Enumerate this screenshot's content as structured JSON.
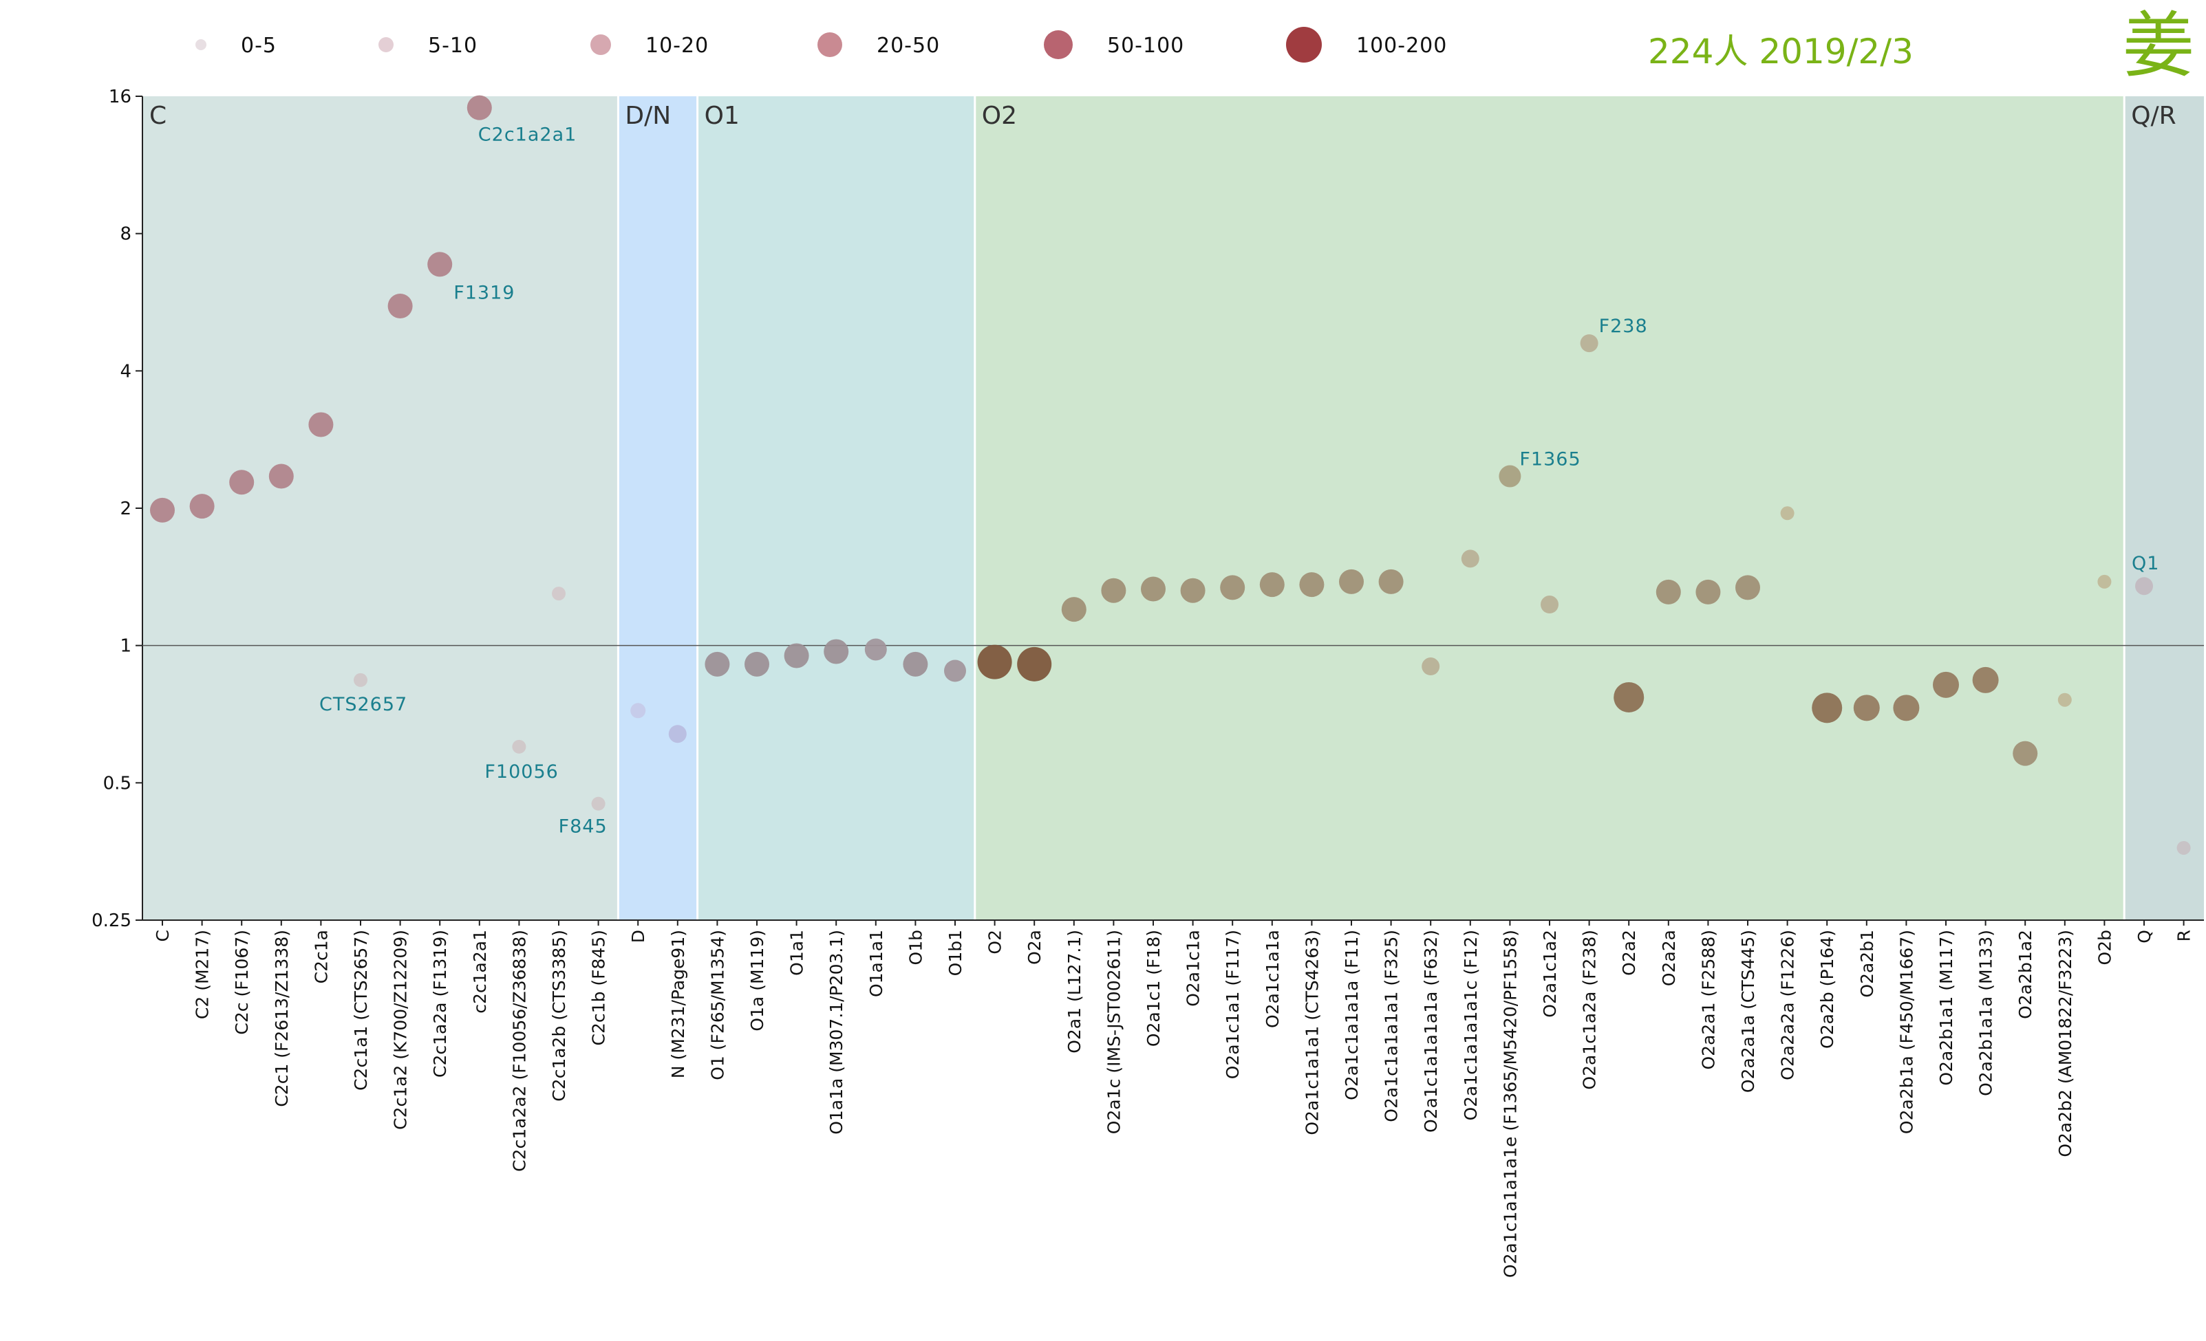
{
  "title": "224人  2019/2/3",
  "surname": "姜",
  "legend": [
    {
      "label": "0-5",
      "color": "#e8dfe3"
    },
    {
      "label": "5-10",
      "color": "#e4cfd5"
    },
    {
      "label": "10-20",
      "color": "#d6a8b0"
    },
    {
      "label": "20-50",
      "color": "#c98a92"
    },
    {
      "label": "50-100",
      "color": "#b86470"
    },
    {
      "label": "100-200",
      "color": "#a03c40"
    }
  ],
  "colors": {
    "region_c": "#d5e4e2",
    "region_dn": "#c9e2fb",
    "region_o1": "#cbe6e6",
    "region_o2": "#cfe6cf",
    "region_qr": "#cbdcdb",
    "refline": "#555555"
  },
  "chart_data": {
    "type": "scatter",
    "y_scale": "log2",
    "ylim": [
      0.25,
      16
    ],
    "y_ticks": [
      "0.25",
      "0.5",
      "1",
      "2",
      "4",
      "8",
      "16"
    ],
    "regions": [
      {
        "label": "C",
        "from": "C",
        "to": "C2c1b (F845)"
      },
      {
        "label": "D/N",
        "from": "D",
        "to": "N (M231/Page91)"
      },
      {
        "label": "O1",
        "from": "O1 (F265/M1354)",
        "to": "O1b1"
      },
      {
        "label": "O2",
        "from": "O2",
        "to": "O2b"
      },
      {
        "label": "Q/R",
        "from": "Q",
        "to": "R"
      }
    ],
    "points": [
      {
        "category": "C",
        "value": 1.98,
        "color": "#b0828a"
      },
      {
        "category": "C2 (M217)",
        "value": 2.02,
        "color": "#b0828a"
      },
      {
        "category": "C2c (F1067)",
        "value": 2.28,
        "color": "#b0828a"
      },
      {
        "category": "C2c1 (F2613/Z1338)",
        "value": 2.35,
        "color": "#b0828a"
      },
      {
        "category": "C2c1a",
        "value": 3.05,
        "color": "#b0828a"
      },
      {
        "category": "C2c1a1 (CTS2657)",
        "value": 0.84,
        "color": "#cfc7c8",
        "annotation": "CTS2657"
      },
      {
        "category": "C2c1a2 (K700/Z12209)",
        "value": 5.55,
        "color": "#b0828a"
      },
      {
        "category": "C2c1a2a (F1319)",
        "value": 6.85,
        "color": "#b0828a",
        "annotation": "F1319"
      },
      {
        "category": "c2c1a2a1",
        "value": 15.1,
        "color": "#b0828a",
        "annotation": "C2c1a2a1"
      },
      {
        "category": "C2c1a2a2 (F10056/Z36838)",
        "value": 0.6,
        "color": "#cfc7c8",
        "annotation": "F10056"
      },
      {
        "category": "C2c1a2b (CTS3385)",
        "value": 1.3,
        "color": "#d2c8ca"
      },
      {
        "category": "C2c1b (F845)",
        "value": 0.45,
        "color": "#cfc7c8",
        "annotation": "F845"
      },
      {
        "category": "D",
        "value": 0.72,
        "color": "#c6cae8"
      },
      {
        "category": "N (M231/Page91)",
        "value": 0.64,
        "color": "#b9bcdf"
      },
      {
        "category": "O1 (F265/M1354)",
        "value": 0.91,
        "color": "#9c8f95"
      },
      {
        "category": "O1a (M119)",
        "value": 0.91,
        "color": "#9c8f95"
      },
      {
        "category": "O1a1",
        "value": 0.95,
        "color": "#9c8f95"
      },
      {
        "category": "O1a1a (M307.1/P203.1)",
        "value": 0.97,
        "color": "#9c8f95"
      },
      {
        "category": "O1a1a1",
        "value": 0.98,
        "color": "#a2959b"
      },
      {
        "category": "O1b",
        "value": 0.91,
        "color": "#9c8f95"
      },
      {
        "category": "O1b1",
        "value": 0.88,
        "color": "#a2959b"
      },
      {
        "category": "O2",
        "value": 0.92,
        "color": "#7d5539"
      },
      {
        "category": "O2a",
        "value": 0.91,
        "color": "#7d5539"
      },
      {
        "category": "O2a1 (L127.1)",
        "value": 1.2,
        "color": "#a08f75"
      },
      {
        "category": "O2a1c (IMS-JST002611)",
        "value": 1.32,
        "color": "#a08f75"
      },
      {
        "category": "O2a1c1 (F18)",
        "value": 1.33,
        "color": "#a08f75"
      },
      {
        "category": "O2a1c1a",
        "value": 1.32,
        "color": "#a08f75"
      },
      {
        "category": "O2a1c1a1 (F117)",
        "value": 1.34,
        "color": "#a08f75"
      },
      {
        "category": "O2a1c1a1a",
        "value": 1.36,
        "color": "#a08f75"
      },
      {
        "category": "O2a1c1a1a1 (CTS4263)",
        "value": 1.36,
        "color": "#a08f75"
      },
      {
        "category": "O2a1c1a1a1a (F11)",
        "value": 1.38,
        "color": "#a08f75"
      },
      {
        "category": "O2a1c1a1a1a1 (F325)",
        "value": 1.38,
        "color": "#a08f75"
      },
      {
        "category": "O2a1c1a1a1a1a (F632)",
        "value": 0.9,
        "color": "#b8b096"
      },
      {
        "category": "O2a1c1a1a1a1c (F12)",
        "value": 1.55,
        "color": "#b8b096"
      },
      {
        "category": "O2a1c1a1a1a1e (F1365/M5420/PF1558)",
        "value": 2.35,
        "color": "#a8a080",
        "annotation": "F1365"
      },
      {
        "category": "O2a1c1a2",
        "value": 1.23,
        "color": "#b8b096"
      },
      {
        "category": "O2a1c1a2a (F238)",
        "value": 4.6,
        "color": "#b8b096",
        "annotation": "F238"
      },
      {
        "category": "O2a2",
        "value": 0.77,
        "color": "#8c6f52"
      },
      {
        "category": "O2a2a",
        "value": 1.31,
        "color": "#a08f75"
      },
      {
        "category": "O2a2a1 (F2588)",
        "value": 1.31,
        "color": "#a08f75"
      },
      {
        "category": "O2a2a1a (CTS445)",
        "value": 1.34,
        "color": "#a08f75"
      },
      {
        "category": "O2a2a2a (F1226)",
        "value": 1.95,
        "color": "#c0b898"
      },
      {
        "category": "O2a2b (P164)",
        "value": 0.73,
        "color": "#8c6f52"
      },
      {
        "category": "O2a2b1",
        "value": 0.73,
        "color": "#957b60"
      },
      {
        "category": "O2a2b1a (F450/M1667)",
        "value": 0.73,
        "color": "#957b60"
      },
      {
        "category": "O2a2b1a1 (M117)",
        "value": 0.82,
        "color": "#957b60"
      },
      {
        "category": "O2a2b1a1a (M133)",
        "value": 0.84,
        "color": "#957b60"
      },
      {
        "category": "O2a2b1a2",
        "value": 0.58,
        "color": "#a08f75"
      },
      {
        "category": "O2a2b2 (AM01822/F3223)",
        "value": 0.76,
        "color": "#c0b898"
      },
      {
        "category": "O2b",
        "value": 1.38,
        "color": "#c0b898"
      },
      {
        "category": "Q",
        "value": 1.35,
        "color": "#c2b8c0",
        "annotation": "Q1"
      },
      {
        "category": "R",
        "value": 0.36,
        "color": "#c8c0c4"
      }
    ]
  }
}
